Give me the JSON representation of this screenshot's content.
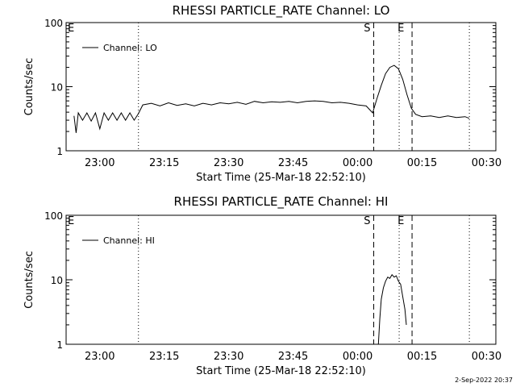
{
  "chart_data": [
    {
      "type": "line",
      "title": "RHESSI PARTICLE_RATE Channel: LO",
      "xlabel": "Start Time (25-Mar-18 22:52:10)",
      "ylabel": "Counts/sec",
      "yscale": "log",
      "ylim": [
        1,
        100
      ],
      "xlim": [
        "22:52:10",
        "00:32:10"
      ],
      "x_ticks": [
        "23:00",
        "23:15",
        "23:30",
        "23:45",
        "00:00",
        "00:15",
        "00:30"
      ],
      "y_ticks": [
        "1",
        "10",
        "100"
      ],
      "legend": "top-left",
      "markers": [
        {
          "label": "E",
          "time": "22:52:10",
          "style": "solid"
        },
        {
          "label": "",
          "time": "23:09:00",
          "style": "dotted"
        },
        {
          "label": "S",
          "time": "00:03:45",
          "style": "dashed"
        },
        {
          "label": "E",
          "time": "00:09:40",
          "style": "dotted"
        },
        {
          "label": "",
          "time": "00:12:40",
          "style": "dashed"
        },
        {
          "label": "",
          "time": "00:26:00",
          "style": "dotted"
        }
      ],
      "series": [
        {
          "name": "Channel: LO",
          "x": [
            "22:54:00",
            "22:54:30",
            "22:55:00",
            "22:56:00",
            "22:57:00",
            "22:58:00",
            "22:59:00",
            "23:00:00",
            "23:01:00",
            "23:02:00",
            "23:03:00",
            "23:04:00",
            "23:05:00",
            "23:06:00",
            "23:07:00",
            "23:08:00",
            "23:09:00",
            "23:10:00",
            "23:12:00",
            "23:14:00",
            "23:16:00",
            "23:18:00",
            "23:20:00",
            "23:22:00",
            "23:24:00",
            "23:26:00",
            "23:28:00",
            "23:30:00",
            "23:32:00",
            "23:34:00",
            "23:36:00",
            "23:38:00",
            "23:40:00",
            "23:42:00",
            "23:44:00",
            "23:46:00",
            "23:48:00",
            "23:50:00",
            "23:52:00",
            "23:54:00",
            "23:56:00",
            "23:58:00",
            "00:00:00",
            "00:02:00",
            "00:03:30",
            "00:04:30",
            "00:05:30",
            "00:06:30",
            "00:07:30",
            "00:08:30",
            "00:09:30",
            "00:10:30",
            "00:11:30",
            "00:12:30",
            "00:13:30",
            "00:15:00",
            "00:17:00",
            "00:19:00",
            "00:21:00",
            "00:23:00",
            "00:25:00",
            "00:26:00"
          ],
          "y": [
            3.5,
            1.9,
            3.9,
            3.0,
            3.9,
            2.9,
            3.9,
            2.2,
            3.9,
            3.0,
            3.9,
            3.0,
            3.9,
            3.0,
            3.9,
            3.0,
            3.8,
            5.2,
            5.5,
            5.0,
            5.6,
            5.1,
            5.4,
            5.0,
            5.5,
            5.2,
            5.6,
            5.4,
            5.7,
            5.3,
            5.9,
            5.6,
            5.8,
            5.7,
            5.9,
            5.6,
            5.9,
            6.0,
            5.9,
            5.6,
            5.7,
            5.5,
            5.2,
            5.0,
            3.9,
            6.5,
            10.5,
            16.0,
            20.0,
            21.5,
            19.0,
            13.0,
            7.5,
            4.6,
            3.7,
            3.4,
            3.5,
            3.3,
            3.5,
            3.3,
            3.4,
            3.2
          ]
        }
      ]
    },
    {
      "type": "line",
      "title": "RHESSI PARTICLE_RATE Channel: HI",
      "xlabel": "Start Time (25-Mar-18 22:52:10)",
      "ylabel": "Counts/sec",
      "yscale": "log",
      "ylim": [
        1,
        100
      ],
      "xlim": [
        "22:52:10",
        "00:32:10"
      ],
      "x_ticks": [
        "23:00",
        "23:15",
        "23:30",
        "23:45",
        "00:00",
        "00:15",
        "00:30"
      ],
      "y_ticks": [
        "1",
        "10",
        "100"
      ],
      "legend": "top-left",
      "markers": [
        {
          "label": "E",
          "time": "22:52:10",
          "style": "solid"
        },
        {
          "label": "",
          "time": "23:09:00",
          "style": "dotted"
        },
        {
          "label": "S",
          "time": "00:03:45",
          "style": "dashed"
        },
        {
          "label": "E",
          "time": "00:09:40",
          "style": "dotted"
        },
        {
          "label": "",
          "time": "00:12:40",
          "style": "dashed"
        },
        {
          "label": "",
          "time": "00:26:00",
          "style": "dotted"
        }
      ],
      "series": [
        {
          "name": "Channel: HI",
          "x": [
            "00:04:50",
            "00:05:10",
            "00:05:30",
            "00:06:00",
            "00:06:30",
            "00:07:00",
            "00:07:30",
            "00:08:00",
            "00:08:30",
            "00:09:00",
            "00:09:30",
            "00:10:00",
            "00:10:30",
            "00:11:00",
            "00:11:20"
          ],
          "y": [
            1.0,
            2.5,
            5.0,
            7.5,
            9.5,
            11.0,
            10.5,
            12.0,
            11.0,
            11.5,
            9.5,
            8.5,
            5.5,
            3.5,
            2.0
          ]
        }
      ]
    }
  ],
  "footer": {
    "date": "2-Sep-2022 20:37"
  }
}
